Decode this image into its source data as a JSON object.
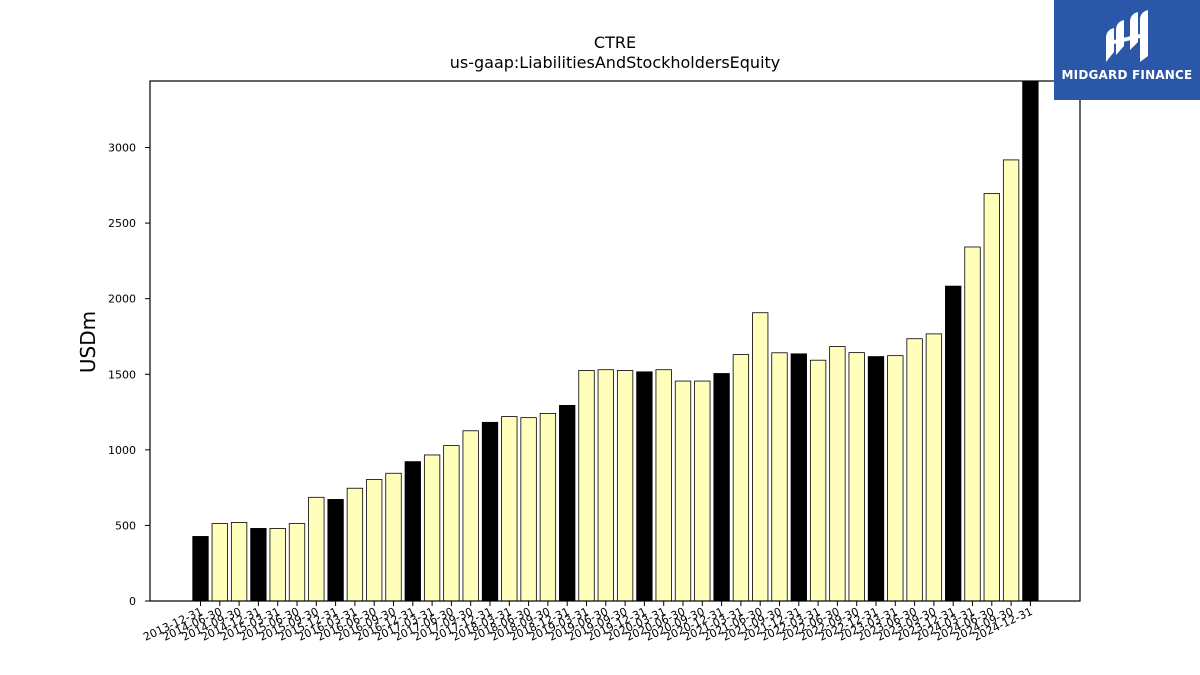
{
  "chart_data": {
    "type": "bar",
    "title": "CTRE",
    "subtitle": "us-gaap:LiabilitiesAndStockholdersEquity",
    "xlabel": "",
    "ylabel": "USDm",
    "ylim": [
      0,
      3440
    ],
    "yticks": [
      0,
      500,
      1000,
      1500,
      2000,
      2500,
      3000
    ],
    "grid": false,
    "categories": [
      "2013-12-31",
      "2014-06-30",
      "2014-09-30",
      "2014-12-31",
      "2015-03-31",
      "2015-06-30",
      "2015-09-30",
      "2015-12-31",
      "2016-03-31",
      "2016-06-30",
      "2016-09-30",
      "2016-12-31",
      "2017-03-31",
      "2017-06-30",
      "2017-09-30",
      "2017-12-31",
      "2018-03-31",
      "2018-06-30",
      "2018-09-30",
      "2018-12-31",
      "2019-03-31",
      "2019-06-30",
      "2019-09-30",
      "2019-12-31",
      "2020-03-31",
      "2020-06-30",
      "2020-09-30",
      "2020-12-31",
      "2021-03-31",
      "2021-06-30",
      "2021-09-30",
      "2021-12-31",
      "2022-03-31",
      "2022-06-30",
      "2022-09-30",
      "2022-12-31",
      "2023-03-31",
      "2023-06-30",
      "2023-09-30",
      "2023-12-31",
      "2024-03-31",
      "2024-06-30",
      "2024-09-30",
      "2024-12-31"
    ],
    "values": [
      427,
      512,
      520,
      480,
      480,
      512,
      686,
      672,
      746,
      804,
      845,
      922,
      966,
      1028,
      1126,
      1182,
      1220,
      1213,
      1241,
      1294,
      1525,
      1530,
      1525,
      1516,
      1530,
      1455,
      1455,
      1505,
      1630,
      1907,
      1642,
      1635,
      1593,
      1683,
      1643,
      1617,
      1623,
      1735,
      1767,
      2083,
      2342,
      2695,
      2918,
      3440
    ],
    "year_end_color": "#000000",
    "quarter_color": "#ffffbb",
    "edge_color": "#000000"
  },
  "logo": {
    "text": "MIDGARD FINANCE",
    "background": "#2a57a8"
  }
}
